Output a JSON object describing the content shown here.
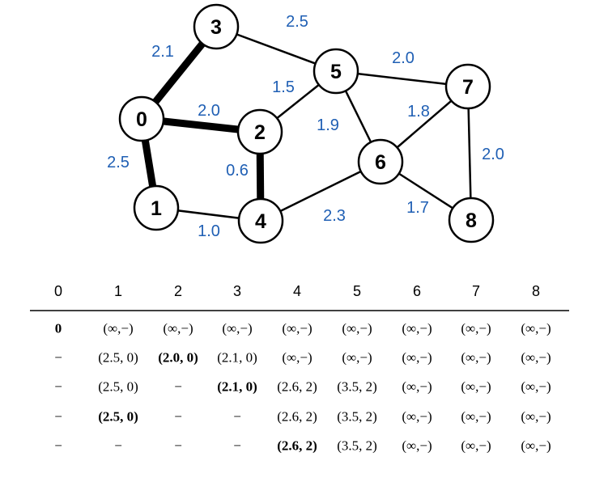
{
  "graph": {
    "nodes": [
      "0",
      "1",
      "2",
      "3",
      "4",
      "5",
      "6",
      "7",
      "8"
    ],
    "edges": [
      {
        "from": 0,
        "to": 3,
        "weight": "2.1",
        "highlighted": true
      },
      {
        "from": 0,
        "to": 2,
        "weight": "2.0",
        "highlighted": true
      },
      {
        "from": 0,
        "to": 1,
        "weight": "2.5",
        "highlighted": true
      },
      {
        "from": 2,
        "to": 4,
        "weight": "0.6",
        "highlighted": true
      },
      {
        "from": 1,
        "to": 4,
        "weight": "1.0",
        "highlighted": false
      },
      {
        "from": 3,
        "to": 5,
        "weight": "2.5",
        "highlighted": false
      },
      {
        "from": 2,
        "to": 5,
        "weight": "1.5",
        "highlighted": false
      },
      {
        "from": 5,
        "to": 6,
        "weight": "1.9",
        "highlighted": false
      },
      {
        "from": 5,
        "to": 7,
        "weight": "2.0",
        "highlighted": false
      },
      {
        "from": 6,
        "to": 7,
        "weight": "1.8",
        "highlighted": false
      },
      {
        "from": 7,
        "to": 8,
        "weight": "2.0",
        "highlighted": false
      },
      {
        "from": 6,
        "to": 8,
        "weight": "1.7",
        "highlighted": false
      },
      {
        "from": 4,
        "to": 6,
        "weight": "2.3",
        "highlighted": false
      }
    ],
    "weight_color": "#1f5fb4"
  },
  "table": {
    "headers": [
      "0",
      "1",
      "2",
      "3",
      "4",
      "5",
      "6",
      "7",
      "8"
    ],
    "rows": [
      [
        "0",
        "(∞,−)",
        "(∞,−)",
        "(∞,−)",
        "(∞,−)",
        "(∞,−)",
        "(∞,−)",
        "(∞,−)",
        "(∞,−)"
      ],
      [
        "−",
        "(2.5, 0)",
        "(2.0, 0)",
        "(2.1, 0)",
        "(∞,−)",
        "(∞,−)",
        "(∞,−)",
        "(∞,−)",
        "(∞,−)"
      ],
      [
        "−",
        "(2.5, 0)",
        "−",
        "(2.1, 0)",
        "(2.6, 2)",
        "(3.5, 2)",
        "(∞,−)",
        "(∞,−)",
        "(∞,−)"
      ],
      [
        "−",
        "(2.5, 0)",
        "−",
        "−",
        "(2.6, 2)",
        "(3.5, 2)",
        "(∞,−)",
        "(∞,−)",
        "(∞,−)"
      ],
      [
        "−",
        "−",
        "−",
        "−",
        "(2.6, 2)",
        "(3.5, 2)",
        "(∞,−)",
        "(∞,−)",
        "(∞,−)"
      ]
    ],
    "bold_cells": [
      [
        0,
        0
      ],
      [
        1,
        2
      ],
      [
        2,
        3
      ],
      [
        3,
        1
      ],
      [
        4,
        4
      ]
    ]
  }
}
